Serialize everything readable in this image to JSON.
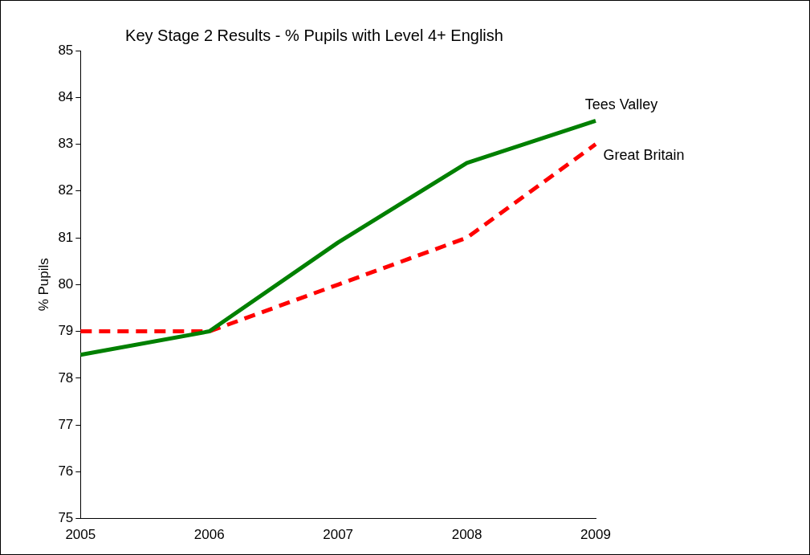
{
  "chart_data": {
    "type": "line",
    "title": "Key Stage 2 Results - % Pupils with Level 4+ English",
    "ylabel": "% Pupils",
    "categories": [
      "2005",
      "2006",
      "2007",
      "2008",
      "2009"
    ],
    "series": [
      {
        "name": "Tees Valley",
        "color": "#008000",
        "line_style": "solid",
        "values": [
          78.5,
          79,
          80.9,
          82.6,
          83.5
        ]
      },
      {
        "name": "Great Britain",
        "color": "#ff0000",
        "line_style": "dashed",
        "values": [
          79,
          79,
          80,
          81,
          83
        ]
      }
    ],
    "ylim": [
      75,
      85
    ],
    "yticks": [
      75,
      76,
      77,
      78,
      79,
      80,
      81,
      82,
      83,
      84,
      85
    ],
    "grid": false,
    "legend": false,
    "marker": "none"
  }
}
